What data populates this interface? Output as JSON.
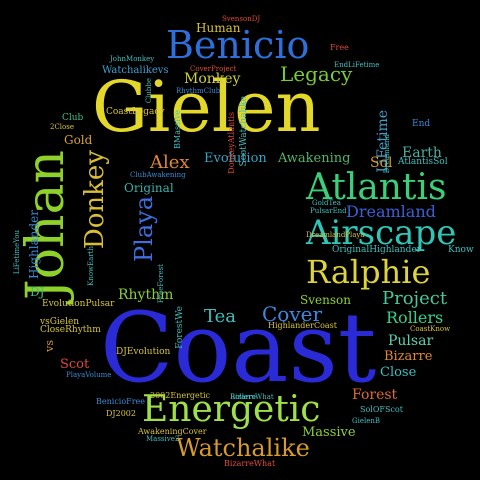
{
  "background": "#000000",
  "words": [
    {
      "id": "coast",
      "text": "Coast",
      "color": "#2a2ad6"
    },
    {
      "id": "gielen",
      "text": "Gielen",
      "color": "#e3d72a"
    },
    {
      "id": "johan",
      "text": "Johan",
      "color": "#8fd12b"
    },
    {
      "id": "benicio",
      "text": "Benicio",
      "color": "#2e6fd9"
    },
    {
      "id": "energetic",
      "text": "Energetic",
      "color": "#9fe04a"
    },
    {
      "id": "atlantis",
      "text": "Atlantis",
      "color": "#3ccf7a"
    },
    {
      "id": "airscape",
      "text": "Airscape",
      "color": "#2ec7b7"
    },
    {
      "id": "ralphie",
      "text": "Ralphie",
      "color": "#ddd33a"
    },
    {
      "id": "donkey",
      "text": "Donkey",
      "color": "#d9bf36"
    },
    {
      "id": "playa",
      "text": "Playa",
      "color": "#3d6fe0"
    },
    {
      "id": "watchalike",
      "text": "Watchalike",
      "color": "#d79a2c"
    },
    {
      "id": "legacy",
      "text": "Legacy",
      "color": "#79cc34"
    },
    {
      "id": "dreamland",
      "text": "Dreamland",
      "color": "#3a60d6"
    },
    {
      "id": "project",
      "text": "Project",
      "color": "#48c89a"
    },
    {
      "id": "alex",
      "text": "Alex",
      "color": "#e08833"
    },
    {
      "id": "evolution",
      "text": "Evolution",
      "color": "#36a4c6"
    },
    {
      "id": "awakening",
      "text": "Awakening",
      "color": "#4fb56a"
    },
    {
      "id": "monkey",
      "text": "Monkey",
      "color": "#cdcf3b"
    },
    {
      "id": "rollers",
      "text": "Rollers",
      "color": "#39cf8a"
    },
    {
      "id": "cover",
      "text": "Cover",
      "color": "#3c88e0"
    },
    {
      "id": "tea",
      "text": "Tea",
      "color": "#3fbfbf"
    },
    {
      "id": "rhythm",
      "text": "Rhythm",
      "color": "#8bcf3a"
    },
    {
      "id": "original",
      "text": "Original",
      "color": "#3bb0a8"
    },
    {
      "id": "lifetime",
      "text": "LiFetime",
      "color": "#3fa0cf"
    },
    {
      "id": "earth",
      "text": "Earth",
      "color": "#4ab0a0"
    },
    {
      "id": "human",
      "text": "Human",
      "color": "#d7c43a"
    },
    {
      "id": "sol",
      "text": "Sol",
      "color": "#d6982c"
    },
    {
      "id": "gold",
      "text": "Gold",
      "color": "#d7a03a"
    },
    {
      "id": "highlander",
      "text": "Highlander",
      "color": "#3a8ad6"
    },
    {
      "id": "svenson",
      "text": "Svenson",
      "color": "#8fd13a"
    },
    {
      "id": "pulsar",
      "text": "Pulsar",
      "color": "#5fd0b0"
    },
    {
      "id": "bizarre",
      "text": "Bizarre",
      "color": "#e08833"
    },
    {
      "id": "close",
      "text": "Close",
      "color": "#3fbfbf"
    },
    {
      "id": "forest",
      "text": "Forest",
      "color": "#e06a2a"
    },
    {
      "id": "massive",
      "text": "Massive",
      "color": "#8fd13a"
    },
    {
      "id": "scot",
      "text": "Scot",
      "color": "#e04a3a"
    },
    {
      "id": "dj",
      "text": "DJ",
      "color": "#3fbf7a"
    },
    {
      "id": "vs",
      "text": "vs",
      "color": "#d79a2c"
    },
    {
      "id": "club",
      "text": "Club",
      "color": "#3fbf8a"
    },
    {
      "id": "end",
      "text": "End",
      "color": "#3a8ad6"
    },
    {
      "id": "know",
      "text": "Know",
      "color": "#3fbfbf"
    },
    {
      "id": "watchalikevs",
      "text": "Watchalikevs",
      "color": "#3f9fcf"
    },
    {
      "id": "coastlegacy",
      "text": "CoastLegacy",
      "color": "#d7c43a"
    },
    {
      "id": "scotwatchalike",
      "text": "ScotWatchalike",
      "color": "#3fbfbf"
    },
    {
      "id": "atlantissol",
      "text": "AtlantisSol",
      "color": "#3fbfbf"
    },
    {
      "id": "evolutionpulsar",
      "text": "EvolutionPulsar",
      "color": "#d7c43a"
    },
    {
      "id": "closerhythm",
      "text": "CloseRhythm",
      "color": "#d7c43a"
    },
    {
      "id": "vsgielen",
      "text": "vsGielen",
      "color": "#d7c43a"
    },
    {
      "id": "djevolution",
      "text": "DJEvolution",
      "color": "#d7c43a"
    },
    {
      "id": "originalhighlander",
      "text": "OriginalHighlander",
      "color": "#3fbfbf"
    },
    {
      "id": "highlandercoast",
      "text": "HighlanderCoast",
      "color": "#d7c43a"
    },
    {
      "id": "energetic2002",
      "text": "2002Energetic",
      "color": "#d7c43a"
    },
    {
      "id": "beniciofree",
      "text": "BenicioFree",
      "color": "#3a8ad6"
    },
    {
      "id": "dj2002",
      "text": "DJ2002",
      "color": "#d7c43a"
    },
    {
      "id": "awakeningcover",
      "text": "AwakeningCover",
      "color": "#d7c43a"
    },
    {
      "id": "bizarrewhat",
      "text": "BizarreWhat",
      "color": "#e04a3a"
    },
    {
      "id": "solofscot",
      "text": "SolOFScot",
      "color": "#3fbfbf"
    },
    {
      "id": "gielenb",
      "text": "GielenB",
      "color": "#3fbfbf"
    },
    {
      "id": "coastknow",
      "text": "CoastKnow",
      "color": "#d7c43a"
    },
    {
      "id": "svensondj",
      "text": "SvensonDJ",
      "color": "#e04a3a"
    },
    {
      "id": "johnmonkey",
      "text": "JohnMonkey",
      "color": "#3fbfbf"
    },
    {
      "id": "coverproject",
      "text": "CoverProject",
      "color": "#e04a3a"
    },
    {
      "id": "free",
      "text": "Free",
      "color": "#e04a3a"
    },
    {
      "id": "endlifetime",
      "text": "EndLiFetime",
      "color": "#3fbfbf"
    },
    {
      "id": "rhythmclub",
      "text": "RhythmClub",
      "color": "#3a8ad6"
    },
    {
      "id": "clubawakening",
      "text": "ClubAwakening",
      "color": "#3a8ad6"
    },
    {
      "id": "pulsarend",
      "text": "PulsarEnd",
      "color": "#3fbfbf"
    },
    {
      "id": "goldtea",
      "text": "GoldTea",
      "color": "#3fbfbf"
    },
    {
      "id": "dreamlandplaya",
      "text": "DreamlandPlaya",
      "color": "#d7c43a"
    },
    {
      "id": "lifetimeyou",
      "text": "LiFetimeYou",
      "color": "#3fbfbf"
    },
    {
      "id": "knowearth",
      "text": "KnowEarth",
      "color": "#3fbfbf"
    },
    {
      "id": "freeforest",
      "text": "FreeForest",
      "color": "#3fbfbf"
    },
    {
      "id": "forestwe",
      "text": "ForestWe",
      "color": "#3fbfbf"
    },
    {
      "id": "bizarre2",
      "text": "Bizarre",
      "color": "#3fbfbf"
    },
    {
      "id": "playavolume",
      "text": "PlayaVolume",
      "color": "#3a8ad6"
    },
    {
      "id": "twoclose",
      "text": "2Close",
      "color": "#d7c43a"
    },
    {
      "id": "massive2",
      "text": "Massive2",
      "color": "#3fbfbf"
    },
    {
      "id": "rollerswhat",
      "text": "RollersWhat",
      "color": "#3fbfbf"
    },
    {
      "id": "bmassive",
      "text": "BMassive",
      "color": "#3fbfbf"
    },
    {
      "id": "donkeyatlantis",
      "text": "DonkeyAtlantis",
      "color": "#e04a3a"
    },
    {
      "id": "clubbe",
      "text": "Clubbe",
      "color": "#3fbfbf"
    },
    {
      "id": "dreamland2",
      "text": "Dreamland",
      "color": "#3fbfbf"
    }
  ]
}
